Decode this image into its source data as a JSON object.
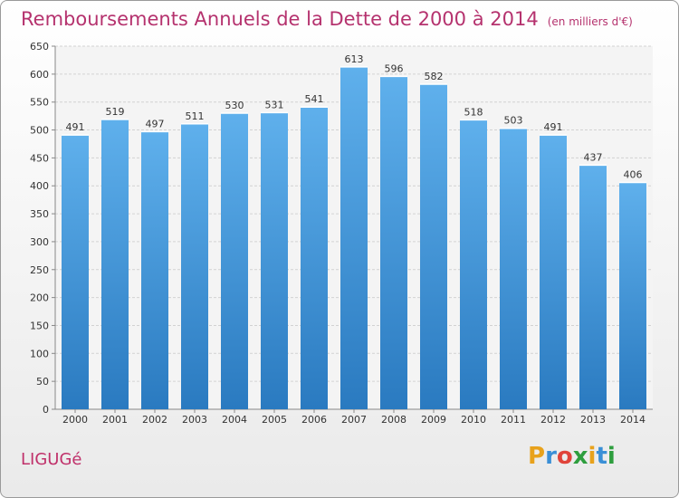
{
  "header": {
    "title": "Remboursements Annuels de la Dette de 2000 à 2014",
    "unit": "(en milliers d'€)"
  },
  "footer": {
    "city": "LIGUGé",
    "brand_letters": [
      "P",
      "r",
      "o",
      "x",
      "i",
      "t",
      "i"
    ],
    "brand_colors": [
      "#e8a21c",
      "#3a8fd6",
      "#e0433a",
      "#2e9e3e",
      "#e8a21c",
      "#3a8fd6",
      "#2e9e3e"
    ]
  },
  "colors": {
    "bar_top": "#5fb0ec",
    "bar_bottom": "#2a7ac0",
    "title": "#b5326e"
  },
  "chart_data": {
    "type": "bar",
    "categories": [
      "2000",
      "2001",
      "2002",
      "2003",
      "2004",
      "2005",
      "2006",
      "2007",
      "2008",
      "2009",
      "2010",
      "2011",
      "2012",
      "2013",
      "2014"
    ],
    "values": [
      491,
      519,
      497,
      511,
      530,
      531,
      541,
      613,
      596,
      582,
      518,
      503,
      491,
      437,
      406
    ],
    "yticks": [
      0,
      50,
      100,
      150,
      200,
      250,
      300,
      350,
      400,
      450,
      500,
      550,
      600,
      650
    ],
    "ylim": [
      0,
      650
    ],
    "grid": true
  }
}
